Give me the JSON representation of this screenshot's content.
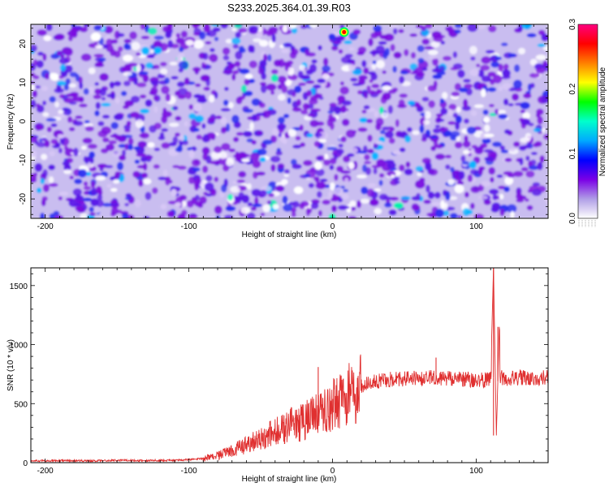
{
  "title": "S233.2025.364.01.39.R03",
  "chart_data": [
    {
      "type": "heatmap",
      "xlabel": "Height of straight line (km)",
      "ylabel": "Frequency (Hz)",
      "xlim": [
        -210,
        150
      ],
      "ylim": [
        -25,
        25
      ],
      "xticks": [
        -200,
        -100,
        0,
        100
      ],
      "yticks": [
        -20,
        -10,
        0,
        10,
        20
      ],
      "xtick_labels": [
        "-200",
        "-100",
        "0",
        "100"
      ],
      "ytick_labels": [
        "-20",
        "-10",
        "0",
        "10",
        "20"
      ],
      "peak": {
        "x": 8,
        "y": 23,
        "value": 0.3
      },
      "colorbar": {
        "label": "Normalized spectral amplitude",
        "range": [
          0.0,
          0.3
        ],
        "ticks": [
          0.0,
          0.1,
          0.2,
          0.3
        ],
        "tick_labels": [
          "0.0",
          "0.1",
          "0.2",
          "0.3"
        ],
        "colors": [
          "#ffffff",
          "#b09ee6",
          "#7a00e6",
          "#0000ff",
          "#00aaff",
          "#00ffcc",
          "#00ff00",
          "#ffff00",
          "#ff8000",
          "#ff0000",
          "#ff0080"
        ]
      }
    },
    {
      "type": "line",
      "xlabel": "Height of straight line (km)",
      "ylabel": "SNR (10 * v/v)",
      "xlim": [
        -210,
        150
      ],
      "ylim": [
        0,
        1650
      ],
      "xticks": [
        -200,
        -100,
        0,
        100
      ],
      "yticks": [
        0,
        500,
        1000,
        1500
      ],
      "xtick_labels": [
        "-200",
        "-100",
        "0",
        "100"
      ],
      "ytick_labels": [
        "0",
        "500",
        "1000",
        "1500"
      ],
      "line_color": "#e03030",
      "series": [
        {
          "name": "SNR",
          "x": [
            -210,
            -190,
            -170,
            -150,
            -130,
            -110,
            -100,
            -90,
            -80,
            -70,
            -60,
            -50,
            -40,
            -30,
            -20,
            -10,
            0,
            10,
            20,
            30,
            40,
            50,
            60,
            70,
            80,
            90,
            100,
            105,
            110,
            112,
            114,
            116,
            120,
            130,
            140,
            150
          ],
          "y": [
            15,
            18,
            15,
            20,
            18,
            20,
            25,
            35,
            60,
            100,
            150,
            200,
            260,
            310,
            350,
            400,
            480,
            580,
            650,
            690,
            705,
            710,
            715,
            720,
            715,
            705,
            700,
            700,
            710,
            1650,
            230,
            1150,
            710,
            720,
            715,
            720
          ]
        }
      ],
      "spikes": [
        {
          "x": -10,
          "y": 810
        },
        {
          "x": 72,
          "y": 890
        },
        {
          "x": 112,
          "y": 1650
        },
        {
          "x": 112,
          "y": 230
        },
        {
          "x": 115,
          "y": 1150
        }
      ]
    }
  ]
}
